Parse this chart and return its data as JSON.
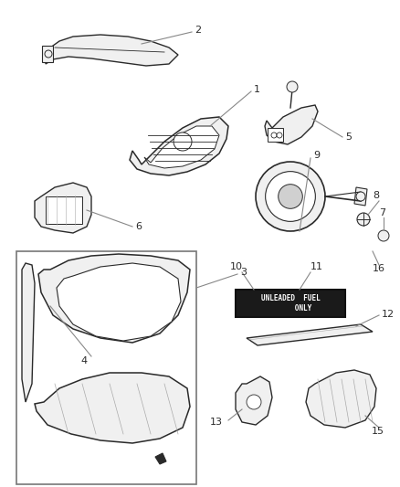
{
  "bg_color": "#ffffff",
  "dark": "#2a2a2a",
  "gray": "#888888",
  "light_gray": "#aaaaaa",
  "fill_light": "#f0f0f0",
  "fill_white": "#ffffff",
  "box_fill": "#1a1a1a",
  "box_text_color": "#ffffff",
  "figsize": [
    4.38,
    5.33
  ],
  "dpi": 100
}
